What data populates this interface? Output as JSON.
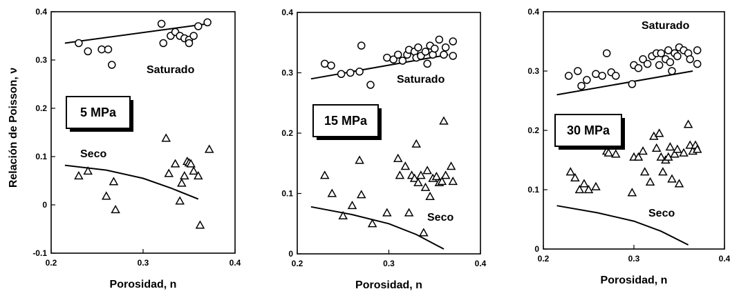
{
  "figure": {
    "ylabel": "Relación de Poisson, ν"
  },
  "chart_data": [
    {
      "type": "scatter",
      "title": "",
      "xlabel": "Porosidad, n",
      "ylabel": "Relación de Poisson, ν",
      "xlim": [
        0.2,
        0.4
      ],
      "ylim": [
        -0.1,
        0.4
      ],
      "xticks": [
        "0.2",
        "0.3",
        "0.4"
      ],
      "yticks": [
        "-0.1",
        "0",
        "0.1",
        "0.2",
        "0.3",
        "0.4"
      ],
      "box_label": "5 MPa",
      "labels": {
        "saturated": "Saturado",
        "dry": "Seco"
      },
      "series": [
        {
          "name": "Saturado",
          "marker": "circle",
          "points": [
            [
              0.23,
              0.335
            ],
            [
              0.24,
              0.318
            ],
            [
              0.255,
              0.322
            ],
            [
              0.262,
              0.322
            ],
            [
              0.266,
              0.29
            ],
            [
              0.32,
              0.375
            ],
            [
              0.322,
              0.335
            ],
            [
              0.33,
              0.35
            ],
            [
              0.335,
              0.358
            ],
            [
              0.34,
              0.35
            ],
            [
              0.345,
              0.345
            ],
            [
              0.35,
              0.342
            ],
            [
              0.35,
              0.335
            ],
            [
              0.355,
              0.35
            ],
            [
              0.36,
              0.37
            ],
            [
              0.37,
              0.378
            ]
          ]
        },
        {
          "name": "Seco",
          "marker": "triangle",
          "points": [
            [
              0.23,
              0.06
            ],
            [
              0.24,
              0.07
            ],
            [
              0.26,
              0.018
            ],
            [
              0.268,
              0.048
            ],
            [
              0.27,
              -0.01
            ],
            [
              0.325,
              0.138
            ],
            [
              0.328,
              0.065
            ],
            [
              0.335,
              0.085
            ],
            [
              0.34,
              0.008
            ],
            [
              0.342,
              0.045
            ],
            [
              0.345,
              0.06
            ],
            [
              0.348,
              0.09
            ],
            [
              0.35,
              0.087
            ],
            [
              0.352,
              0.085
            ],
            [
              0.355,
              0.07
            ],
            [
              0.36,
              0.06
            ],
            [
              0.362,
              -0.042
            ],
            [
              0.372,
              0.115
            ]
          ]
        }
      ],
      "trendlines": [
        {
          "name": "Saturado",
          "x": [
            0.215,
            0.37
          ],
          "y": [
            0.335,
            0.375
          ]
        },
        {
          "name": "Seco",
          "x": [
            0.215,
            0.26,
            0.3,
            0.33,
            0.36
          ],
          "y": [
            0.082,
            0.072,
            0.055,
            0.035,
            0.012
          ]
        }
      ]
    },
    {
      "type": "scatter",
      "title": "",
      "xlabel": "Porosidad, n",
      "ylabel": "",
      "xlim": [
        0.2,
        0.4
      ],
      "ylim": [
        0,
        0.4
      ],
      "xticks": [
        "0.2",
        "0.3",
        "0.4"
      ],
      "yticks": [
        "0",
        "0.1",
        "0.2",
        "0.3",
        "0.4"
      ],
      "box_label": "15 MPa",
      "labels": {
        "saturated": "Saturado",
        "dry": "Seco"
      },
      "series": [
        {
          "name": "Saturado",
          "marker": "circle",
          "points": [
            [
              0.23,
              0.315
            ],
            [
              0.237,
              0.312
            ],
            [
              0.248,
              0.298
            ],
            [
              0.258,
              0.3
            ],
            [
              0.268,
              0.302
            ],
            [
              0.27,
              0.345
            ],
            [
              0.28,
              0.28
            ],
            [
              0.298,
              0.325
            ],
            [
              0.305,
              0.322
            ],
            [
              0.31,
              0.33
            ],
            [
              0.315,
              0.32
            ],
            [
              0.32,
              0.33
            ],
            [
              0.322,
              0.338
            ],
            [
              0.328,
              0.335
            ],
            [
              0.33,
              0.325
            ],
            [
              0.332,
              0.342
            ],
            [
              0.335,
              0.328
            ],
            [
              0.34,
              0.335
            ],
            [
              0.342,
              0.315
            ],
            [
              0.345,
              0.345
            ],
            [
              0.348,
              0.33
            ],
            [
              0.35,
              0.34
            ],
            [
              0.355,
              0.355
            ],
            [
              0.36,
              0.33
            ],
            [
              0.362,
              0.342
            ],
            [
              0.37,
              0.352
            ],
            [
              0.37,
              0.328
            ]
          ]
        },
        {
          "name": "Seco",
          "marker": "triangle",
          "points": [
            [
              0.23,
              0.13
            ],
            [
              0.238,
              0.1
            ],
            [
              0.25,
              0.063
            ],
            [
              0.26,
              0.08
            ],
            [
              0.268,
              0.155
            ],
            [
              0.27,
              0.098
            ],
            [
              0.282,
              0.05
            ],
            [
              0.298,
              0.068
            ],
            [
              0.31,
              0.158
            ],
            [
              0.312,
              0.13
            ],
            [
              0.318,
              0.145
            ],
            [
              0.322,
              0.068
            ],
            [
              0.325,
              0.13
            ],
            [
              0.328,
              0.125
            ],
            [
              0.33,
              0.182
            ],
            [
              0.332,
              0.118
            ],
            [
              0.335,
              0.13
            ],
            [
              0.338,
              0.035
            ],
            [
              0.34,
              0.11
            ],
            [
              0.342,
              0.138
            ],
            [
              0.345,
              0.095
            ],
            [
              0.348,
              0.125
            ],
            [
              0.352,
              0.128
            ],
            [
              0.355,
              0.118
            ],
            [
              0.358,
              0.12
            ],
            [
              0.36,
              0.22
            ],
            [
              0.362,
              0.13
            ],
            [
              0.368,
              0.145
            ],
            [
              0.37,
              0.12
            ]
          ]
        }
      ],
      "trendlines": [
        {
          "name": "Saturado",
          "x": [
            0.215,
            0.365
          ],
          "y": [
            0.29,
            0.33
          ]
        },
        {
          "name": "Seco",
          "x": [
            0.215,
            0.26,
            0.3,
            0.33,
            0.36
          ],
          "y": [
            0.078,
            0.065,
            0.05,
            0.032,
            0.008
          ]
        }
      ]
    },
    {
      "type": "scatter",
      "title": "",
      "xlabel": "Porosidad, n",
      "ylabel": "",
      "xlim": [
        0.2,
        0.4
      ],
      "ylim": [
        0,
        0.4
      ],
      "xticks": [
        "0.2",
        "0.3",
        "0.4"
      ],
      "yticks": [
        "0",
        "0.1",
        "0.2",
        "0.3",
        "0.4"
      ],
      "box_label": "30 MPa",
      "labels": {
        "saturated": "Saturado",
        "dry": "Seco"
      },
      "series": [
        {
          "name": "Saturado",
          "marker": "circle",
          "points": [
            [
              0.228,
              0.292
            ],
            [
              0.238,
              0.3
            ],
            [
              0.242,
              0.275
            ],
            [
              0.248,
              0.285
            ],
            [
              0.258,
              0.295
            ],
            [
              0.265,
              0.292
            ],
            [
              0.27,
              0.33
            ],
            [
              0.275,
              0.298
            ],
            [
              0.28,
              0.292
            ],
            [
              0.298,
              0.278
            ],
            [
              0.3,
              0.31
            ],
            [
              0.305,
              0.305
            ],
            [
              0.31,
              0.32
            ],
            [
              0.315,
              0.312
            ],
            [
              0.32,
              0.325
            ],
            [
              0.325,
              0.33
            ],
            [
              0.328,
              0.31
            ],
            [
              0.33,
              0.33
            ],
            [
              0.335,
              0.32
            ],
            [
              0.338,
              0.335
            ],
            [
              0.34,
              0.315
            ],
            [
              0.342,
              0.3
            ],
            [
              0.345,
              0.33
            ],
            [
              0.348,
              0.325
            ],
            [
              0.35,
              0.34
            ],
            [
              0.355,
              0.335
            ],
            [
              0.36,
              0.33
            ],
            [
              0.362,
              0.32
            ],
            [
              0.37,
              0.335
            ],
            [
              0.37,
              0.312
            ]
          ]
        },
        {
          "name": "Seco",
          "marker": "triangle",
          "points": [
            [
              0.23,
              0.13
            ],
            [
              0.235,
              0.12
            ],
            [
              0.24,
              0.1
            ],
            [
              0.245,
              0.11
            ],
            [
              0.25,
              0.1
            ],
            [
              0.258,
              0.105
            ],
            [
              0.27,
              0.165
            ],
            [
              0.272,
              0.162
            ],
            [
              0.28,
              0.16
            ],
            [
              0.298,
              0.095
            ],
            [
              0.3,
              0.155
            ],
            [
              0.305,
              0.155
            ],
            [
              0.31,
              0.165
            ],
            [
              0.312,
              0.13
            ],
            [
              0.318,
              0.113
            ],
            [
              0.322,
              0.19
            ],
            [
              0.325,
              0.17
            ],
            [
              0.328,
              0.195
            ],
            [
              0.33,
              0.155
            ],
            [
              0.332,
              0.13
            ],
            [
              0.335,
              0.15
            ],
            [
              0.338,
              0.155
            ],
            [
              0.34,
              0.172
            ],
            [
              0.342,
              0.118
            ],
            [
              0.345,
              0.16
            ],
            [
              0.348,
              0.168
            ],
            [
              0.35,
              0.11
            ],
            [
              0.355,
              0.162
            ],
            [
              0.36,
              0.21
            ],
            [
              0.362,
              0.175
            ],
            [
              0.365,
              0.165
            ],
            [
              0.368,
              0.175
            ],
            [
              0.37,
              0.168
            ]
          ]
        }
      ],
      "trendlines": [
        {
          "name": "Saturado",
          "x": [
            0.215,
            0.365
          ],
          "y": [
            0.26,
            0.3
          ]
        },
        {
          "name": "Seco",
          "x": [
            0.215,
            0.26,
            0.3,
            0.33,
            0.36
          ],
          "y": [
            0.073,
            0.061,
            0.047,
            0.03,
            0.007
          ]
        }
      ]
    }
  ]
}
